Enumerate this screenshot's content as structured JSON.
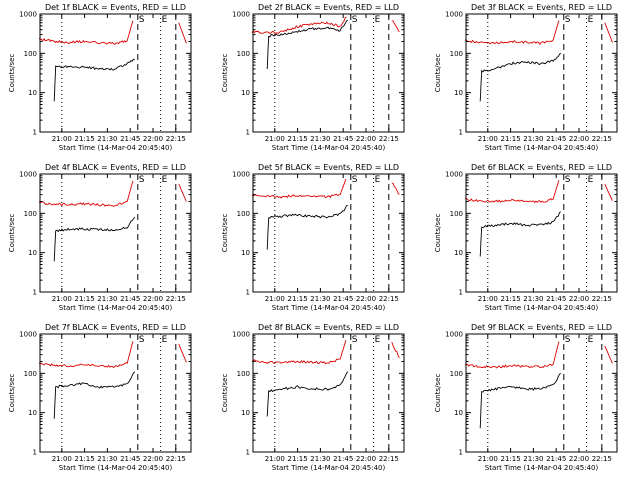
{
  "figure": {
    "bg_color": "#ffffff",
    "axis_color": "#000000",
    "black_series_color": "#000000",
    "red_series_color": "#dd0000"
  },
  "chart_data": [
    {
      "type": "line",
      "title": "Det 1f BLACK = Events, RED = LLD",
      "xlabel": "Start Time (14-Mar-04 20:45:40)",
      "ylabel": "Counts/sec",
      "xlim": [
        "20:45:40",
        "22:25"
      ],
      "ylim": [
        1,
        1000
      ],
      "yscale": "log",
      "xticks": [
        "21:00",
        "21:15",
        "21:30",
        "21:45",
        "22:00",
        "22:15"
      ],
      "yticks": [
        "1",
        "10",
        "100",
        "1000"
      ],
      "markers": [
        {
          "label": "S",
          "time": "21:50",
          "style": "dashed"
        },
        {
          "label": "E",
          "time": "22:05",
          "style": "dotted"
        },
        {
          "label": "",
          "time": "21:00",
          "style": "dotted"
        },
        {
          "label": "",
          "time": "22:15",
          "style": "dashed"
        }
      ],
      "series": [
        {
          "color": "red",
          "x": [
            "20:45",
            "20:55",
            "21:05",
            "21:15",
            "21:25",
            "21:35",
            "21:43",
            "21:48",
            "22:17",
            "22:22"
          ],
          "y": [
            230,
            200,
            190,
            200,
            185,
            180,
            210,
            1000,
            600,
            180
          ]
        },
        {
          "color": "black",
          "x": [
            "20:55",
            "20:56",
            "21:05",
            "21:15",
            "21:25",
            "21:35",
            "21:43",
            "21:48"
          ],
          "y": [
            6,
            45,
            45,
            45,
            40,
            40,
            55,
            70
          ]
        }
      ]
    },
    {
      "type": "line",
      "title": "Det 2f BLACK = Events, RED = LLD",
      "xlabel": "Start Time (14-Mar-04 20:45:40)",
      "ylabel": "Counts/sec",
      "xlim": [
        "20:45:40",
        "22:25"
      ],
      "ylim": [
        1,
        1000
      ],
      "yscale": "log",
      "xticks": [
        "21:00",
        "21:15",
        "21:30",
        "21:45",
        "22:00",
        "22:15"
      ],
      "yticks": [
        "1",
        "10",
        "100",
        "1000"
      ],
      "markers": [
        {
          "label": "S",
          "time": "21:50",
          "style": "dashed"
        },
        {
          "label": "E",
          "time": "22:05",
          "style": "dotted"
        },
        {
          "label": "",
          "time": "21:00",
          "style": "dotted"
        },
        {
          "label": "",
          "time": "22:15",
          "style": "dashed"
        }
      ],
      "series": [
        {
          "color": "red",
          "x": [
            "20:45",
            "20:55",
            "21:05",
            "21:15",
            "21:25",
            "21:35",
            "21:43",
            "21:48",
            "22:17",
            "22:22"
          ],
          "y": [
            350,
            330,
            350,
            480,
            560,
            600,
            480,
            1000,
            700,
            350
          ]
        },
        {
          "color": "black",
          "x": [
            "20:55",
            "20:56",
            "21:05",
            "21:15",
            "21:25",
            "21:35",
            "21:43",
            "21:48"
          ],
          "y": [
            40,
            280,
            300,
            350,
            420,
            450,
            380,
            700
          ]
        }
      ]
    },
    {
      "type": "line",
      "title": "Det 3f BLACK = Events, RED = LLD",
      "xlabel": "Start Time (14-Mar-04 20:45:40)",
      "ylabel": "Counts/sec",
      "xlim": [
        "20:45:40",
        "22:25"
      ],
      "ylim": [
        1,
        1000
      ],
      "yscale": "log",
      "xticks": [
        "21:00",
        "21:15",
        "21:30",
        "21:45",
        "22:00",
        "22:15"
      ],
      "yticks": [
        "1",
        "10",
        "100",
        "1000"
      ],
      "markers": [
        {
          "label": "S",
          "time": "21:50",
          "style": "dashed"
        },
        {
          "label": "E",
          "time": "22:05",
          "style": "dotted"
        },
        {
          "label": "",
          "time": "21:00",
          "style": "dotted"
        },
        {
          "label": "",
          "time": "22:15",
          "style": "dashed"
        }
      ],
      "series": [
        {
          "color": "red",
          "x": [
            "20:45",
            "20:55",
            "21:05",
            "21:15",
            "21:25",
            "21:35",
            "21:43",
            "21:48",
            "22:17",
            "22:22"
          ],
          "y": [
            210,
            190,
            180,
            200,
            190,
            180,
            220,
            1000,
            600,
            190
          ]
        },
        {
          "color": "black",
          "x": [
            "20:55",
            "20:56",
            "21:05",
            "21:15",
            "21:25",
            "21:35",
            "21:43",
            "21:48"
          ],
          "y": [
            6,
            35,
            40,
            55,
            60,
            55,
            65,
            100
          ]
        }
      ]
    },
    {
      "type": "line",
      "title": "Det 4f BLACK = Events, RED = LLD",
      "xlabel": "Start Time (14-Mar-04 20:45:40)",
      "ylabel": "Counts/sec",
      "xlim": [
        "20:45:40",
        "22:25"
      ],
      "ylim": [
        1,
        1000
      ],
      "yscale": "log",
      "xticks": [
        "21:00",
        "21:15",
        "21:30",
        "21:45",
        "22:00",
        "22:15"
      ],
      "yticks": [
        "1",
        "10",
        "100",
        "1000"
      ],
      "markers": [
        {
          "label": "S",
          "time": "21:50",
          "style": "dashed"
        },
        {
          "label": "E",
          "time": "22:05",
          "style": "dotted"
        },
        {
          "label": "",
          "time": "21:00",
          "style": "dotted"
        },
        {
          "label": "",
          "time": "22:15",
          "style": "dashed"
        }
      ],
      "series": [
        {
          "color": "red",
          "x": [
            "20:45",
            "20:55",
            "21:05",
            "21:15",
            "21:25",
            "21:35",
            "21:43",
            "21:48",
            "22:17",
            "22:22"
          ],
          "y": [
            190,
            170,
            165,
            175,
            165,
            160,
            200,
            1000,
            550,
            200
          ]
        },
        {
          "color": "black",
          "x": [
            "20:55",
            "20:56",
            "21:05",
            "21:15",
            "21:25",
            "21:35",
            "21:43",
            "21:48"
          ],
          "y": [
            6,
            35,
            40,
            40,
            38,
            38,
            45,
            80
          ]
        }
      ]
    },
    {
      "type": "line",
      "title": "Det 5f BLACK = Events, RED = LLD",
      "xlabel": "Start Time (14-Mar-04 20:45:40)",
      "ylabel": "Counts/sec",
      "xlim": [
        "20:45:40",
        "22:25"
      ],
      "ylim": [
        1,
        1000
      ],
      "yscale": "log",
      "xticks": [
        "21:00",
        "21:15",
        "21:30",
        "21:45",
        "22:00",
        "22:15"
      ],
      "yticks": [
        "1",
        "10",
        "100",
        "1000"
      ],
      "markers": [
        {
          "label": "S",
          "time": "21:50",
          "style": "dashed"
        },
        {
          "label": "E",
          "time": "22:05",
          "style": "dotted"
        },
        {
          "label": "",
          "time": "21:00",
          "style": "dotted"
        },
        {
          "label": "",
          "time": "22:15",
          "style": "dashed"
        }
      ],
      "series": [
        {
          "color": "red",
          "x": [
            "20:45",
            "20:55",
            "21:05",
            "21:15",
            "21:25",
            "21:35",
            "21:43",
            "21:48",
            "22:17",
            "22:22"
          ],
          "y": [
            290,
            270,
            260,
            290,
            270,
            260,
            300,
            1000,
            600,
            300
          ]
        },
        {
          "color": "black",
          "x": [
            "20:55",
            "20:56",
            "21:05",
            "21:15",
            "21:25",
            "21:35",
            "21:43",
            "21:48"
          ],
          "y": [
            12,
            80,
            85,
            90,
            85,
            80,
            95,
            160
          ]
        }
      ]
    },
    {
      "type": "line",
      "title": "Det 6f BLACK = Events, RED = LLD",
      "xlabel": "Start Time (14-Mar-04 20:45:40)",
      "ylabel": "Counts/sec",
      "xlim": [
        "20:45:40",
        "22:25"
      ],
      "ylim": [
        1,
        1000
      ],
      "yscale": "log",
      "xticks": [
        "21:00",
        "21:15",
        "21:30",
        "21:45",
        "22:00",
        "22:15"
      ],
      "yticks": [
        "1",
        "10",
        "100",
        "1000"
      ],
      "markers": [
        {
          "label": "S",
          "time": "21:50",
          "style": "dashed"
        },
        {
          "label": "E",
          "time": "22:05",
          "style": "dotted"
        },
        {
          "label": "",
          "time": "21:00",
          "style": "dotted"
        },
        {
          "label": "",
          "time": "22:15",
          "style": "dashed"
        }
      ],
      "series": [
        {
          "color": "red",
          "x": [
            "20:45",
            "20:55",
            "21:05",
            "21:15",
            "21:25",
            "21:35",
            "21:43",
            "21:48",
            "22:17",
            "22:22"
          ],
          "y": [
            230,
            210,
            200,
            215,
            205,
            195,
            230,
            1000,
            550,
            210
          ]
        },
        {
          "color": "black",
          "x": [
            "20:55",
            "20:56",
            "21:05",
            "21:15",
            "21:25",
            "21:35",
            "21:43",
            "21:48"
          ],
          "y": [
            8,
            45,
            50,
            55,
            50,
            50,
            60,
            110
          ]
        }
      ]
    },
    {
      "type": "line",
      "title": "Det 7f BLACK = Events, RED = LLD",
      "xlabel": "Start Time (14-Mar-04 20:45:40)",
      "ylabel": "Counts/sec",
      "xlim": [
        "20:45:40",
        "22:25"
      ],
      "ylim": [
        1,
        1000
      ],
      "yscale": "log",
      "xticks": [
        "21:00",
        "21:15",
        "21:30",
        "21:45",
        "22:00",
        "22:15"
      ],
      "yticks": [
        "1",
        "10",
        "100",
        "1000"
      ],
      "markers": [
        {
          "label": "S",
          "time": "21:50",
          "style": "dashed"
        },
        {
          "label": "E",
          "time": "22:05",
          "style": "dotted"
        },
        {
          "label": "",
          "time": "21:00",
          "style": "dotted"
        },
        {
          "label": "",
          "time": "22:15",
          "style": "dashed"
        }
      ],
      "series": [
        {
          "color": "red",
          "x": [
            "20:45",
            "20:55",
            "21:05",
            "21:15",
            "21:25",
            "21:35",
            "21:43",
            "21:48",
            "22:17",
            "22:22"
          ],
          "y": [
            180,
            160,
            155,
            165,
            155,
            150,
            180,
            1000,
            550,
            190
          ]
        },
        {
          "color": "black",
          "x": [
            "20:55",
            "20:56",
            "21:05",
            "21:15",
            "21:25",
            "21:35",
            "21:43",
            "21:48"
          ],
          "y": [
            7,
            45,
            50,
            55,
            45,
            45,
            55,
            110
          ]
        }
      ]
    },
    {
      "type": "line",
      "title": "Det 8f BLACK = Events, RED = LLD",
      "xlabel": "Start Time (14-Mar-04 20:45:40)",
      "ylabel": "Counts/sec",
      "xlim": [
        "20:45:40",
        "22:25"
      ],
      "ylim": [
        1,
        1000
      ],
      "yscale": "log",
      "xticks": [
        "21:00",
        "21:15",
        "21:30",
        "21:45",
        "22:00",
        "22:15"
      ],
      "yticks": [
        "1",
        "10",
        "100",
        "1000"
      ],
      "markers": [
        {
          "label": "S",
          "time": "21:50",
          "style": "dashed"
        },
        {
          "label": "E",
          "time": "22:05",
          "style": "dotted"
        },
        {
          "label": "",
          "time": "21:00",
          "style": "dotted"
        },
        {
          "label": "",
          "time": "22:15",
          "style": "dashed"
        }
      ],
      "series": [
        {
          "color": "red",
          "x": [
            "20:45",
            "20:55",
            "21:05",
            "21:15",
            "21:25",
            "21:35",
            "21:43",
            "21:48",
            "22:17",
            "22:22"
          ],
          "y": [
            210,
            190,
            185,
            200,
            190,
            185,
            230,
            1000,
            600,
            250
          ]
        },
        {
          "color": "black",
          "x": [
            "20:55",
            "20:56",
            "21:05",
            "21:15",
            "21:25",
            "21:35",
            "21:43",
            "21:48"
          ],
          "y": [
            8,
            35,
            40,
            45,
            40,
            40,
            50,
            110
          ]
        }
      ]
    },
    {
      "type": "line",
      "title": "Det 9f BLACK = Events, RED = LLD",
      "xlabel": "Start Time (14-Mar-04 20:45:40)",
      "ylabel": "Counts/sec",
      "xlim": [
        "20:45:40",
        "22:25"
      ],
      "ylim": [
        1,
        1000
      ],
      "yscale": "log",
      "xticks": [
        "21:00",
        "21:15",
        "21:30",
        "21:45",
        "22:00",
        "22:15"
      ],
      "yticks": [
        "1",
        "10",
        "100",
        "1000"
      ],
      "markers": [
        {
          "label": "S",
          "time": "21:50",
          "style": "dashed"
        },
        {
          "label": "E",
          "time": "22:05",
          "style": "dotted"
        },
        {
          "label": "",
          "time": "21:00",
          "style": "dotted"
        },
        {
          "label": "",
          "time": "22:15",
          "style": "dashed"
        }
      ],
      "series": [
        {
          "color": "red",
          "x": [
            "20:45",
            "20:55",
            "21:05",
            "21:15",
            "21:25",
            "21:35",
            "21:43",
            "21:48",
            "22:17",
            "22:22"
          ],
          "y": [
            160,
            150,
            145,
            155,
            150,
            145,
            170,
            1000,
            500,
            180
          ]
        },
        {
          "color": "black",
          "x": [
            "20:55",
            "20:56",
            "21:05",
            "21:15",
            "21:25",
            "21:35",
            "21:43",
            "21:48"
          ],
          "y": [
            4,
            35,
            40,
            45,
            40,
            40,
            50,
            100
          ]
        }
      ]
    }
  ]
}
